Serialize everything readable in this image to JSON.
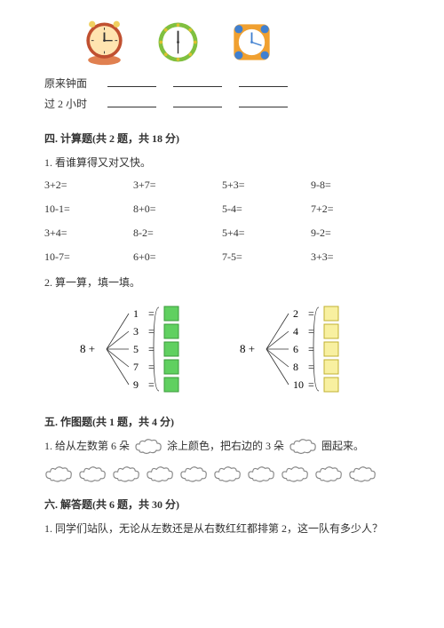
{
  "clocks": {
    "times": [
      "8:00",
      "7:00",
      "10:00"
    ],
    "colors": {
      "clock1_base": "#e08050",
      "clock1_ring": "#c05030",
      "clock1_face": "#ffe4b0",
      "clock2_ring": "#80c040",
      "clock2_dots": "#e0c030",
      "clock2_face": "#ffffff",
      "clock3_body": "#f0a030",
      "clock3_corner": "#4080d0",
      "clock3_face": "#ffffff",
      "hand_color": "#333333"
    }
  },
  "fill_rows": [
    {
      "label": "原来钟面",
      "blanks": 3
    },
    {
      "label": "过 2 小时",
      "blanks": 3
    }
  ],
  "section4": {
    "title": "四. 计算题(共 2 题，共 18 分)",
    "q1": {
      "text": "1. 看谁算得又对又快。",
      "rows": [
        [
          "3+2=",
          "3+7=",
          "5+3=",
          "9-8="
        ],
        [
          "10-1=",
          "8+0=",
          "5-4=",
          "7+2="
        ],
        [
          "3+4=",
          "8-2=",
          "5+4=",
          "9-2="
        ],
        [
          "10-7=",
          "6+0=",
          "7-5=",
          "3+3="
        ]
      ]
    },
    "q2": {
      "text": "2. 算一算，填一填。",
      "left": {
        "base": 8,
        "targets": [
          1,
          3,
          5,
          7,
          9
        ],
        "box_fill": "#60d060",
        "box_stroke": "#3a9a3a"
      },
      "right": {
        "base": 8,
        "targets": [
          2,
          4,
          6,
          8,
          10
        ],
        "box_fill": "#f8f0a0",
        "box_stroke": "#c0b030"
      }
    }
  },
  "section5": {
    "title": "五. 作图题(共 1 题，共 4 分)",
    "q1_a": "1. 给从左数第 6 朵",
    "q1_b": "涂上颜色，把右边的 3 朵",
    "q1_c": "圈起来。",
    "cloud_count": 10,
    "cloud_stroke": "#888888"
  },
  "section6": {
    "title": "六. 解答题(共 6 题，共 30 分)",
    "q1": "1. 同学们站队，无论从左数还是从右数红红都排第 2，这一队有多少人？"
  }
}
